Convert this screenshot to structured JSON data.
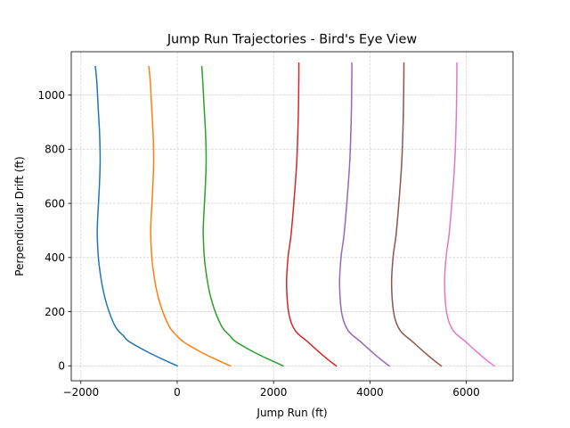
{
  "chart_data": {
    "type": "line",
    "title": "Jump Run Trajectories - Bird's Eye View",
    "xlabel": "Jump Run (ft)",
    "ylabel": "Perpendicular Drift (ft)",
    "xlim": [
      -2200,
      6970
    ],
    "ylim": [
      -55,
      1160
    ],
    "xticks": [
      -2000,
      0,
      2000,
      4000,
      6000
    ],
    "xtick_labels": [
      "−2000",
      "0",
      "2000",
      "4000",
      "6000"
    ],
    "yticks": [
      0,
      200,
      400,
      600,
      800,
      1000
    ],
    "ytick_labels": [
      "0",
      "200",
      "400",
      "600",
      "800",
      "1000"
    ],
    "grid": true,
    "grid_style": "dashed",
    "legend": false,
    "colors": [
      "#1f77b4",
      "#ff7f0e",
      "#2ca02c",
      "#d62728",
      "#9467bd",
      "#8c564b",
      "#e377c2"
    ],
    "series": [
      {
        "x": [
          0,
          -250,
          -600,
          -1000,
          -1110,
          -1300,
          -1500,
          -1620,
          -1660,
          -1650,
          -1620,
          -1600,
          -1610,
          -1640,
          -1670,
          -1700
        ],
        "y": [
          0,
          20,
          50,
          90,
          110,
          150,
          250,
          370,
          480,
          550,
          650,
          750,
          850,
          950,
          1050,
          1105
        ]
      },
      {
        "x": [
          1100,
          850,
          500,
          120,
          0,
          -180,
          -390,
          -510,
          -550,
          -540,
          -510,
          -490,
          -500,
          -530,
          -560,
          -590
        ],
        "y": [
          0,
          20,
          50,
          90,
          110,
          150,
          250,
          370,
          480,
          550,
          650,
          750,
          850,
          950,
          1050,
          1105
        ]
      },
      {
        "x": [
          2200,
          1950,
          1600,
          1210,
          1100,
          910,
          700,
          580,
          540,
          550,
          580,
          600,
          590,
          560,
          530,
          510
        ],
        "y": [
          0,
          20,
          50,
          90,
          110,
          150,
          250,
          370,
          480,
          550,
          650,
          750,
          850,
          950,
          1050,
          1105
        ]
      },
      {
        "x": [
          3300,
          3150,
          2950,
          2700,
          2450,
          2320,
          2270,
          2300,
          2360,
          2420,
          2480,
          2510,
          2520,
          2525,
          2525
        ],
        "y": [
          0,
          20,
          50,
          90,
          130,
          190,
          300,
          400,
          480,
          600,
          750,
          900,
          1000,
          1080,
          1118
        ]
      },
      {
        "x": [
          4400,
          4250,
          4050,
          3800,
          3550,
          3420,
          3370,
          3400,
          3460,
          3520,
          3580,
          3610,
          3620,
          3625,
          3625
        ],
        "y": [
          0,
          20,
          50,
          90,
          130,
          190,
          300,
          400,
          480,
          600,
          750,
          900,
          1000,
          1080,
          1118
        ]
      },
      {
        "x": [
          5480,
          5330,
          5130,
          4880,
          4630,
          4500,
          4450,
          4480,
          4540,
          4600,
          4660,
          4690,
          4700,
          4705,
          4705
        ],
        "y": [
          0,
          20,
          50,
          90,
          130,
          190,
          300,
          400,
          480,
          600,
          750,
          900,
          1000,
          1080,
          1118
        ]
      },
      {
        "x": [
          6580,
          6430,
          6230,
          5980,
          5730,
          5600,
          5550,
          5580,
          5640,
          5700,
          5760,
          5790,
          5800,
          5805,
          5805
        ],
        "y": [
          0,
          20,
          50,
          90,
          130,
          190,
          300,
          400,
          480,
          600,
          750,
          900,
          1000,
          1080,
          1118
        ]
      }
    ]
  }
}
